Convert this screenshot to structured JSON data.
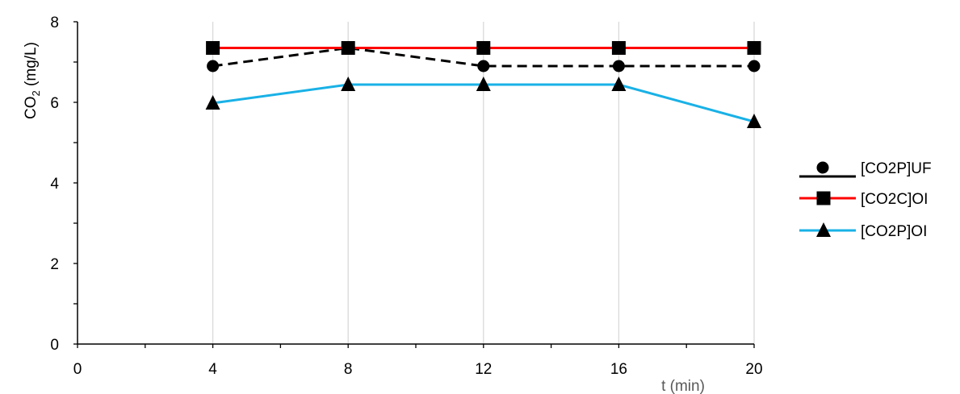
{
  "chart_data": {
    "type": "line",
    "xlabel": "t (min)",
    "ylabel_main": "CO",
    "ylabel_sub": "2",
    "ylabel_rest": " (mg/L)",
    "xlim": [
      0,
      20
    ],
    "ylim": [
      0,
      8
    ],
    "x_ticks": [
      0,
      4,
      8,
      12,
      16,
      20
    ],
    "y_ticks": [
      0,
      2,
      4,
      6,
      8
    ],
    "grid": "vertical",
    "legend_position": "right",
    "x": [
      4,
      8,
      12,
      16,
      20
    ],
    "series": [
      {
        "name": "[CO2P]UF",
        "values": [
          6.9,
          7.35,
          6.9,
          6.9,
          6.9
        ],
        "color": "#000000",
        "dashed": true,
        "marker": "circle"
      },
      {
        "name": "[CO2C]OI",
        "values": [
          7.35,
          7.35,
          7.35,
          7.35,
          7.35
        ],
        "color": "#ff0000",
        "dashed": false,
        "marker": "square"
      },
      {
        "name": "[CO2P]OI",
        "values": [
          5.98,
          6.44,
          6.44,
          6.44,
          5.52
        ],
        "color": "#19b1e6",
        "dashed": false,
        "marker": "triangle"
      }
    ]
  }
}
